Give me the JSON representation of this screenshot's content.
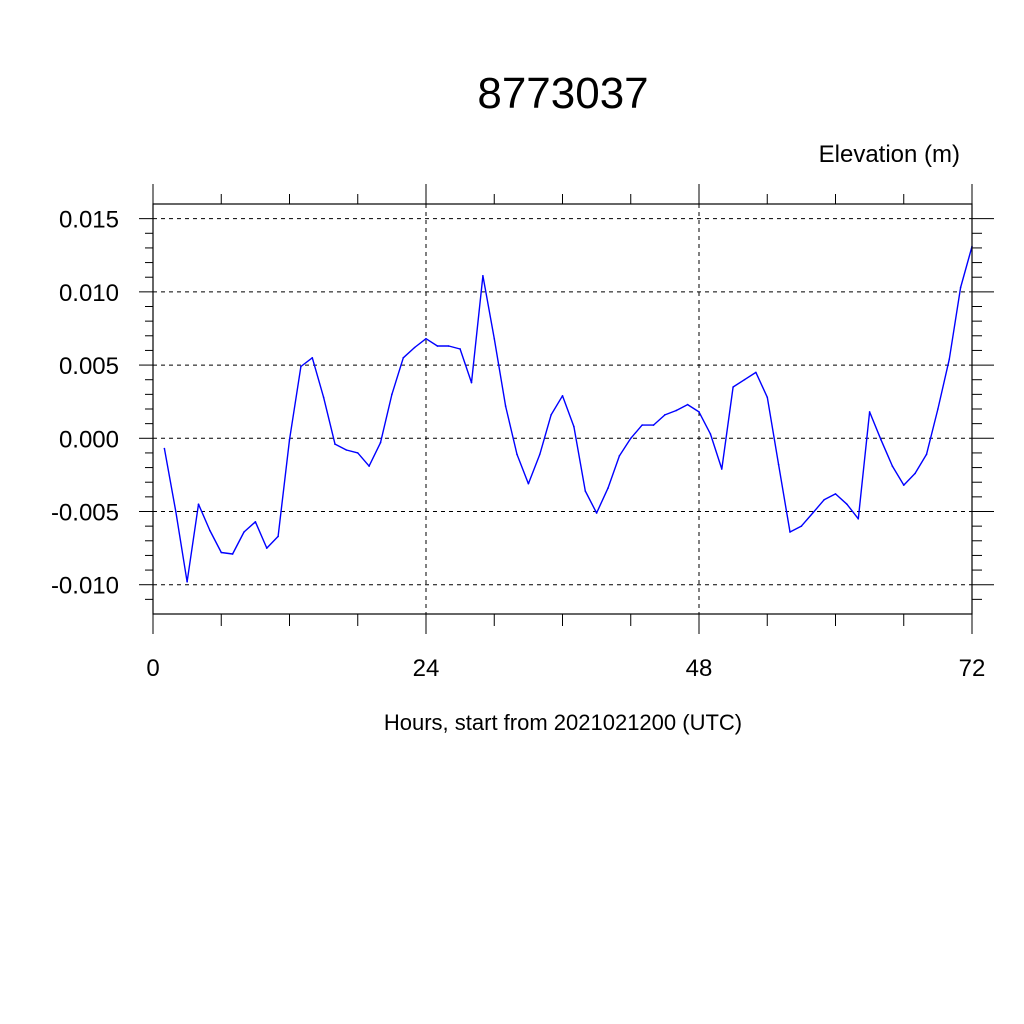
{
  "chart_data": {
    "type": "line",
    "title": "8773037",
    "ylabel": "Elevation (m)",
    "xlabel": "Hours, start from 2021021200 (UTC)",
    "xlim": [
      0,
      72
    ],
    "ylim": [
      -0.012,
      0.016
    ],
    "x_ticks": [
      0,
      24,
      48,
      72
    ],
    "x_tick_labels": [
      "0",
      "24",
      "48",
      "72"
    ],
    "y_ticks": [
      -0.01,
      -0.005,
      0.0,
      0.005,
      0.01,
      0.015
    ],
    "y_tick_labels": [
      "-0.010",
      "-0.005",
      "0.000",
      "0.005",
      "0.010",
      "0.015"
    ],
    "grid": true,
    "series": [
      {
        "color": "#0000ff",
        "x": [
          1,
          2,
          3,
          4,
          5,
          6,
          7,
          8,
          9,
          10,
          11,
          12,
          13,
          14,
          15,
          16,
          17,
          18,
          19,
          20,
          21,
          22,
          23,
          24,
          25,
          26,
          27,
          28,
          29,
          30,
          31,
          32,
          33,
          34,
          35,
          36,
          37,
          38,
          39,
          40,
          41,
          42,
          43,
          44,
          45,
          46,
          47,
          48,
          49,
          50,
          51,
          52,
          53,
          54,
          55,
          56,
          57,
          58,
          59,
          60,
          61,
          62,
          63,
          64,
          65,
          66,
          67,
          68,
          69,
          70,
          71,
          72
        ],
        "values": [
          -0.0007,
          -0.005,
          -0.0098,
          -0.0045,
          -0.0063,
          -0.0078,
          -0.0079,
          -0.0064,
          -0.0057,
          -0.0075,
          -0.0067,
          -0.0001,
          0.0049,
          0.0055,
          0.0028,
          -0.0004,
          -0.0008,
          -0.001,
          -0.0019,
          -0.0003,
          0.003,
          0.0055,
          0.0062,
          0.0068,
          0.0063,
          0.0063,
          0.0061,
          0.0038,
          0.0111,
          0.0068,
          0.0022,
          -0.0011,
          -0.0031,
          -0.0011,
          0.0016,
          0.0029,
          0.0008,
          -0.0036,
          -0.0051,
          -0.0034,
          -0.0012,
          0.0,
          0.0009,
          0.0009,
          0.0016,
          0.0019,
          0.0023,
          0.0018,
          0.0003,
          -0.0021,
          0.0035,
          0.004,
          0.0045,
          0.0028,
          -0.0018,
          -0.0064,
          -0.006,
          -0.0051,
          -0.0042,
          -0.0038,
          -0.0045,
          -0.0055,
          0.0018,
          -0.0001,
          -0.0019,
          -0.0032,
          -0.0024,
          -0.0011,
          0.002,
          0.0054,
          0.0103,
          0.0131
        ]
      }
    ]
  }
}
